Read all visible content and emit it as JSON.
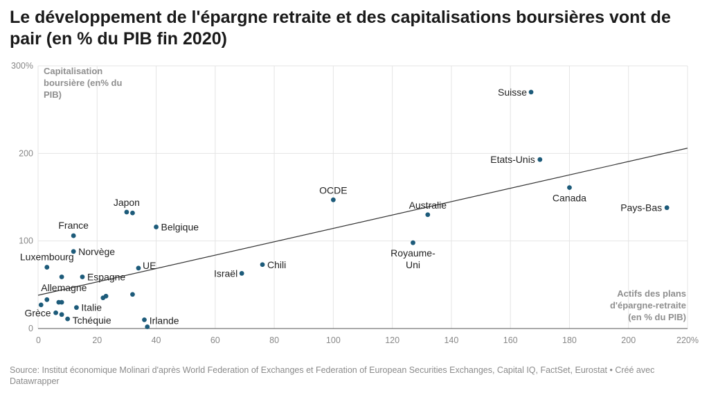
{
  "title": "Le développement de l'épargne retraite et des capitalisations boursières vont de pair (en % du PIB fin 2020)",
  "source": "Source: Institut économique Molinari d'après World Federation of Exchanges et Federation of European Securities Exchanges, Capital IQ, FactSet, Eurostat • Créé avec Datawrapper",
  "colors": {
    "point": "#1d5b7a",
    "grid": "#e4e4e4",
    "trend": "#333333",
    "text": "#222222",
    "muted": "#8f8f8f"
  },
  "chart_data": {
    "type": "scatter",
    "title": "Le développement de l'épargne retraite et des capitalisations boursières vont de pair (en % du PIB fin 2020)",
    "ylabel_lines": [
      "Capitalisation",
      "boursière (en% du",
      "PIB)"
    ],
    "xlabel_lines": [
      "Actifs des plans",
      "d'épargne-retraite",
      "(en % du PIB)"
    ],
    "xlim": [
      0,
      220
    ],
    "ylim": [
      0,
      300
    ],
    "x_ticks": [
      "0",
      "20",
      "40",
      "60",
      "80",
      "100",
      "120",
      "140",
      "160",
      "180",
      "200",
      "220%"
    ],
    "y_ticks": [
      "0",
      "100",
      "200",
      "300%"
    ],
    "grid": true,
    "trendline": {
      "x1": 0,
      "y1": 38,
      "x2": 220,
      "y2": 206
    },
    "points": [
      {
        "label": "Suisse",
        "x": 167,
        "y": 270,
        "anchor": "end",
        "dx": -6,
        "dy": 5
      },
      {
        "label": "Etats-Unis",
        "x": 170,
        "y": 193,
        "anchor": "end",
        "dx": -7,
        "dy": 5
      },
      {
        "label": "Canada",
        "x": 180,
        "y": 161,
        "anchor": "middle",
        "dx": 0,
        "dy": 20
      },
      {
        "label": "Pays-Bas",
        "x": 213,
        "y": 138,
        "anchor": "end",
        "dx": -7,
        "dy": 5
      },
      {
        "label": "OCDE",
        "x": 100,
        "y": 147,
        "anchor": "middle",
        "dx": 0,
        "dy": -9
      },
      {
        "label": "Australie",
        "x": 132,
        "y": 130,
        "anchor": "middle",
        "dx": 0,
        "dy": -9
      },
      {
        "label": "Royaume-",
        "label2": "Uni",
        "x": 127,
        "y": 98,
        "anchor": "middle",
        "dx": 0,
        "dy": 20
      },
      {
        "label": "Japon",
        "x": 30,
        "y": 133,
        "anchor": "middle",
        "dx": 0,
        "dy": -9
      },
      {
        "label": "",
        "x": 32,
        "y": 132
      },
      {
        "label": "Belgique",
        "x": 40,
        "y": 116,
        "anchor": "start",
        "dx": 7,
        "dy": 5
      },
      {
        "label": "France",
        "x": 12,
        "y": 106,
        "anchor": "middle",
        "dx": 0,
        "dy": -10
      },
      {
        "label": "Norvège",
        "x": 12,
        "y": 88,
        "anchor": "start",
        "dx": 7,
        "dy": 5
      },
      {
        "label": "Luxembourg",
        "x": 3,
        "y": 70,
        "anchor": "middle",
        "dx": 0,
        "dy": -10
      },
      {
        "label": "UE",
        "x": 34,
        "y": 69,
        "anchor": "start",
        "dx": 6,
        "dy": 1
      },
      {
        "label": "Chili",
        "x": 76,
        "y": 73,
        "anchor": "start",
        "dx": 7,
        "dy": 5
      },
      {
        "label": "Israël",
        "x": 69,
        "y": 63,
        "anchor": "end",
        "dx": -6,
        "dy": 5
      },
      {
        "label": "",
        "x": 8,
        "y": 59
      },
      {
        "label": "Espagne",
        "x": 15,
        "y": 59,
        "anchor": "start",
        "dx": 7,
        "dy": 5
      },
      {
        "label": "Allemagne",
        "x": 1,
        "y": 27,
        "anchor": "start",
        "dx": 0,
        "dy": -20
      },
      {
        "label": "",
        "x": 3,
        "y": 33
      },
      {
        "label": "",
        "x": 7,
        "y": 30
      },
      {
        "label": "",
        "x": 8,
        "y": 30
      },
      {
        "label": "Italie",
        "x": 13,
        "y": 24,
        "anchor": "start",
        "dx": 7,
        "dy": 5
      },
      {
        "label": "",
        "x": 22,
        "y": 35
      },
      {
        "label": "",
        "x": 23,
        "y": 37
      },
      {
        "label": "",
        "x": 32,
        "y": 39
      },
      {
        "label": "Grèce",
        "x": 6,
        "y": 18,
        "anchor": "end",
        "dx": -7,
        "dy": 5
      },
      {
        "label": "",
        "x": 8,
        "y": 16
      },
      {
        "label": "Tchéquie",
        "x": 10,
        "y": 11,
        "anchor": "start",
        "dx": 7,
        "dy": 7
      },
      {
        "label": "",
        "x": 36,
        "y": 10
      },
      {
        "label": "Irlande",
        "x": 37,
        "y": 2,
        "anchor": "start",
        "dx": 3,
        "dy": -4
      }
    ]
  }
}
